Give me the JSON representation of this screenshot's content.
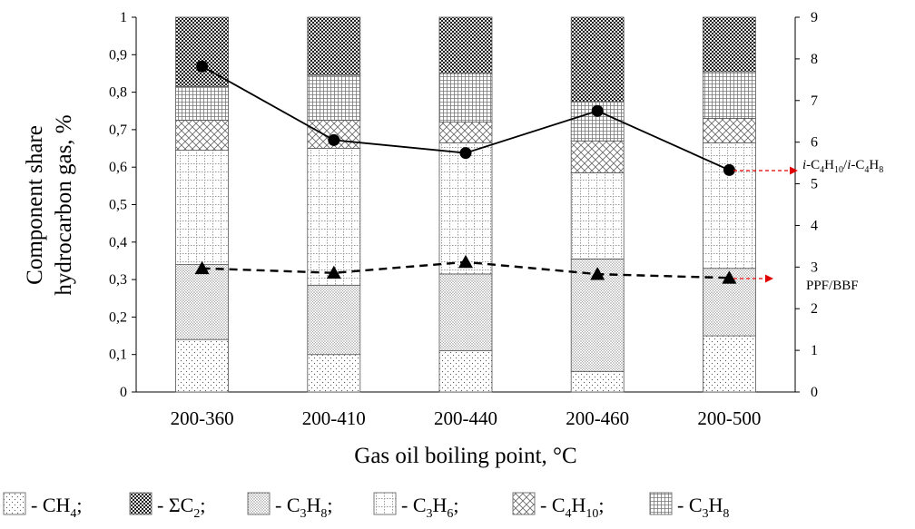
{
  "chart_data": {
    "type": "bar",
    "stacked": true,
    "categories": [
      "200-360",
      "200-410",
      "200-440",
      "200-460",
      "200-500"
    ],
    "xlabel": "Gas oil boiling point, °C",
    "ylabel_left": [
      "Component share",
      "hydrocarbon gas, %"
    ],
    "ylim_left": [
      0,
      1
    ],
    "ylim_right": [
      0,
      9
    ],
    "yticks_left": [
      "0",
      "0,1",
      "0,2",
      "0,3",
      "0,4",
      "0,5",
      "0,6",
      "0,7",
      "0,8",
      "0,9",
      "1"
    ],
    "yticks_right": [
      "0",
      "1",
      "2",
      "3",
      "4",
      "5",
      "6",
      "7",
      "8",
      "9"
    ],
    "series": [
      {
        "name": "CH4",
        "pattern": "sparse-dots",
        "values": [
          0.14,
          0.1,
          0.11,
          0.055,
          0.15
        ]
      },
      {
        "name": "C3H8",
        "pattern": "dense-dots",
        "values": [
          0.2,
          0.185,
          0.205,
          0.3,
          0.18
        ]
      },
      {
        "name": "C3H6",
        "pattern": "small-grid",
        "values": [
          0.305,
          0.365,
          0.35,
          0.23,
          0.335
        ]
      },
      {
        "name": "C4H10",
        "pattern": "diagonal-cross",
        "values": [
          0.08,
          0.075,
          0.055,
          0.085,
          0.065
        ]
      },
      {
        "name": "C3H8",
        "pattern": "dense-grid",
        "values": [
          0.09,
          0.12,
          0.13,
          0.105,
          0.125
        ]
      },
      {
        "name": "ΣC2",
        "pattern": "checker",
        "values": [
          0.185,
          0.155,
          0.15,
          0.225,
          0.145
        ]
      }
    ],
    "lines": [
      {
        "name": "i-C4H10/i-C4H8",
        "axis": "right",
        "marker": "circle",
        "style": "solid",
        "values": [
          7.82,
          6.05,
          5.74,
          6.75,
          5.33
        ]
      },
      {
        "name": "PPF/BBF",
        "axis": "right",
        "marker": "triangle",
        "style": "dashed",
        "values": [
          2.97,
          2.86,
          3.12,
          2.83,
          2.74
        ]
      }
    ],
    "legend": [
      {
        "pattern": "sparse-dots",
        "label": "- CH",
        "sub": "4",
        "after": ";"
      },
      {
        "pattern": "checker",
        "label": "- ΣC",
        "sub": "2",
        "after": ";"
      },
      {
        "pattern": "dense-dots",
        "label": "- C",
        "sub": "3",
        "mid": "H",
        "sub2": "8",
        "after": ";"
      },
      {
        "pattern": "small-grid",
        "label": "- C",
        "sub": "3",
        "mid": "H",
        "sub2": "6",
        "after": ";"
      },
      {
        "pattern": "diagonal-cross",
        "label": "- C",
        "sub": "4",
        "mid": "H",
        "sub2": "10",
        "after": ";"
      },
      {
        "pattern": "dense-grid",
        "label": "- C",
        "sub": "3",
        "mid": "H",
        "sub2": "8",
        "after": ""
      }
    ],
    "legend_placement": "bottom"
  },
  "annotations": {
    "ratio_label": {
      "p1": "i",
      "p2": "-C",
      "s1": "4",
      "p3": "H",
      "s2": "10",
      "p4": "/",
      "p5": "i",
      "p6": "-C",
      "s3": "4",
      "p7": "H",
      "s4": "8"
    },
    "ppf_label": "PPF/BBF",
    "arrow_color": "#e00000"
  }
}
